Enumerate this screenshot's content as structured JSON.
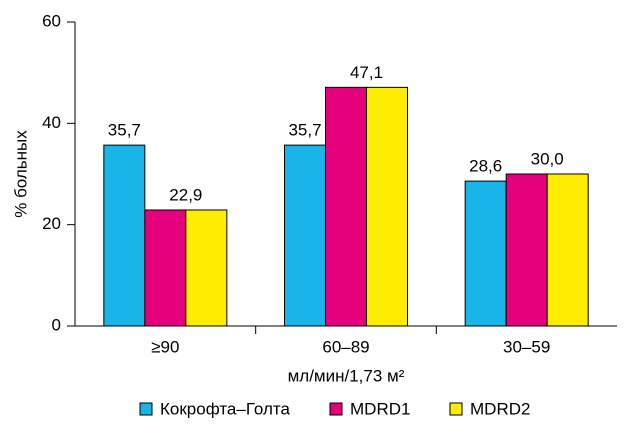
{
  "chart_data": {
    "type": "bar",
    "y_label": "% больных",
    "x_label": "мл/мин/1,73 м²",
    "categories": [
      "≥90",
      "60–89",
      "30–59"
    ],
    "series": [
      {
        "name": "Кокрофта–Голта",
        "color": "#19b4e8",
        "values": [
          35.7,
          35.7,
          28.6
        ],
        "value_labels": [
          "35,7",
          "35,7",
          "28,6"
        ]
      },
      {
        "name": "MDRD1",
        "color": "#e5007d",
        "values": [
          22.9,
          47.1,
          30.0
        ],
        "value_labels": [
          "22,9",
          "47,1",
          "30,0"
        ]
      },
      {
        "name": "MDRD2",
        "color": "#ffed00",
        "values": [
          22.9,
          47.1,
          30.0
        ]
      }
    ],
    "ylim": [
      0,
      60
    ],
    "yticks": [
      0,
      20,
      40,
      60
    ]
  }
}
